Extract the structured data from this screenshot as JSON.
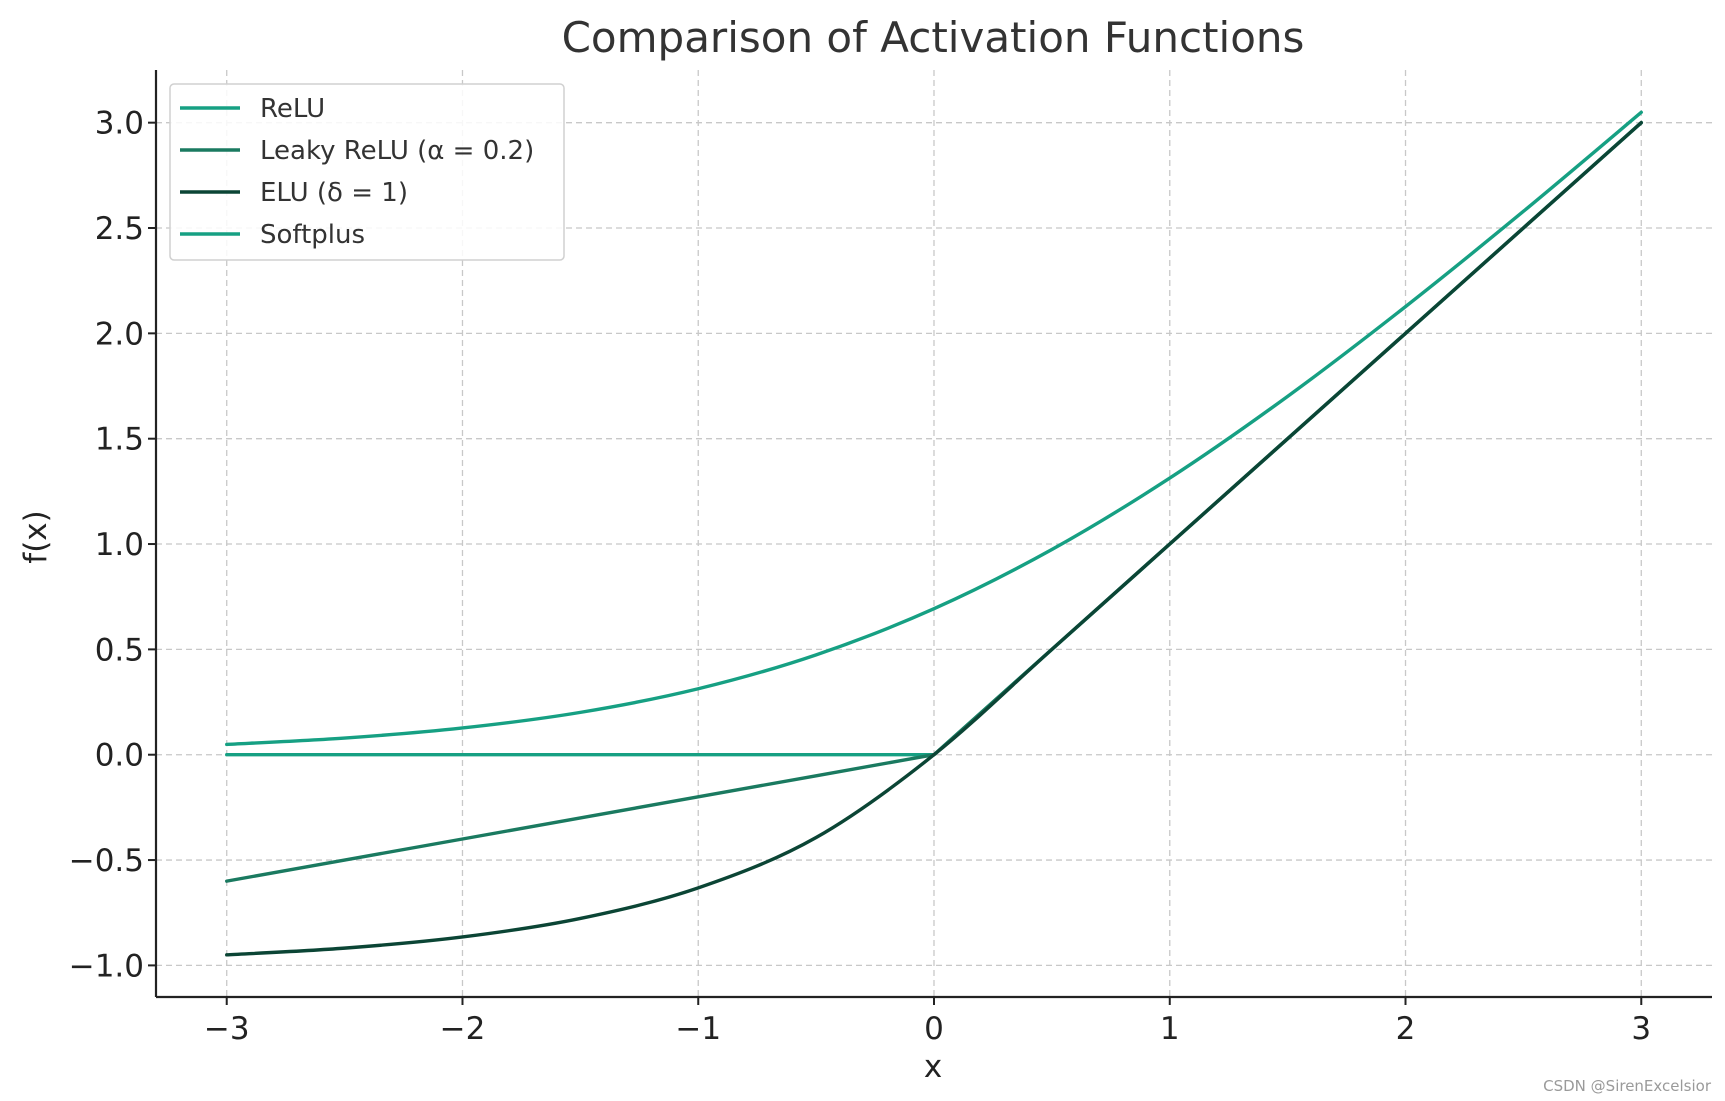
{
  "chart_data": {
    "type": "line",
    "title": "Comparison of Activation Functions",
    "xlabel": "x",
    "ylabel": "f(x)",
    "xlim": [
      -3.3,
      3.3
    ],
    "ylim": [
      -1.15,
      3.25
    ],
    "xticks": [
      -3,
      -2,
      -1,
      0,
      1,
      2,
      3
    ],
    "xtick_labels": [
      "−3",
      "−2",
      "−1",
      "0",
      "1",
      "2",
      "3"
    ],
    "yticks": [
      -1.0,
      -0.5,
      0.0,
      0.5,
      1.0,
      1.5,
      2.0,
      2.5,
      3.0
    ],
    "ytick_labels": [
      "−1.0",
      "−0.5",
      "0.0",
      "0.5",
      "1.0",
      "1.5",
      "2.0",
      "2.5",
      "3.0"
    ],
    "grid": true,
    "legend_position": "top-left",
    "x": [
      -3.0,
      -2.5,
      -2.0,
      -1.5,
      -1.0,
      -0.5,
      0.0,
      0.5,
      1.0,
      1.5,
      2.0,
      2.5,
      3.0
    ],
    "series": [
      {
        "name": "ReLU",
        "color": "#16a083",
        "values": [
          0,
          0,
          0,
          0,
          0,
          0,
          0,
          0.5,
          1.0,
          1.5,
          2.0,
          2.5,
          3.0
        ]
      },
      {
        "name": "Leaky ReLU (α = 0.2)",
        "color": "#1a7a60",
        "values": [
          -0.6,
          -0.5,
          -0.4,
          -0.3,
          -0.2,
          -0.1,
          0,
          0.5,
          1.0,
          1.5,
          2.0,
          2.5,
          3.0
        ]
      },
      {
        "name": "ELU (δ = 1)",
        "color": "#0b4535",
        "values": [
          -0.95,
          -0.918,
          -0.865,
          -0.777,
          -0.632,
          -0.393,
          0,
          0.5,
          1.0,
          1.5,
          2.0,
          2.5,
          3.0
        ]
      },
      {
        "name": "Softplus",
        "color": "#16a083",
        "values": [
          0.049,
          0.079,
          0.127,
          0.201,
          0.313,
          0.474,
          0.693,
          0.974,
          1.313,
          1.701,
          2.127,
          2.579,
          3.049
        ]
      }
    ]
  },
  "watermark": "CSDN @SirenExcelsior"
}
